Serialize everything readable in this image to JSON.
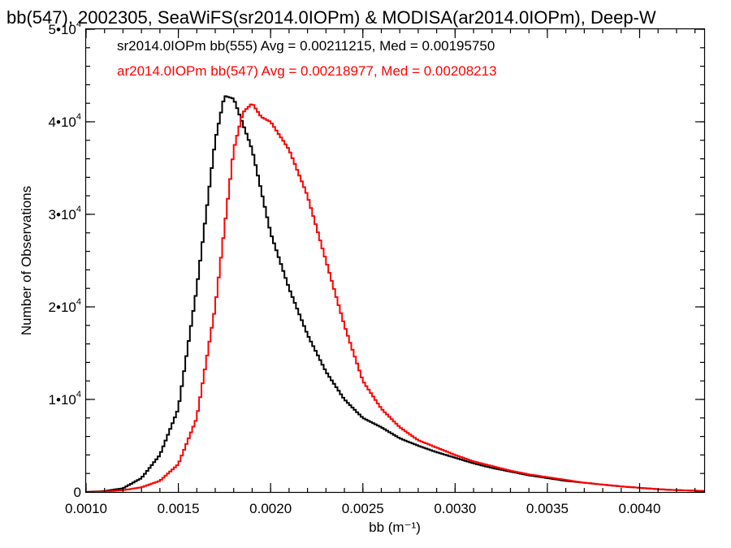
{
  "chart_data": {
    "type": "histogram",
    "title": "bb(547), 2002305, SeaWiFS(sr2014.0IOPm) & MODISA(ar2014.0IOPm), Deep-W",
    "xlabel": "bb (m⁻¹)",
    "ylabel": "Number of Observations",
    "xlim": [
      0.001,
      0.00435
    ],
    "ylim": [
      0,
      50000
    ],
    "x_ticks": [
      {
        "value": 0.001,
        "label": "0.0010"
      },
      {
        "value": 0.0015,
        "label": "0.0015"
      },
      {
        "value": 0.002,
        "label": "0.0020"
      },
      {
        "value": 0.0025,
        "label": "0.0025"
      },
      {
        "value": 0.003,
        "label": "0.0030"
      },
      {
        "value": 0.0035,
        "label": "0.0035"
      },
      {
        "value": 0.004,
        "label": "0.0040"
      }
    ],
    "y_ticks": [
      {
        "value": 0,
        "label": "0"
      },
      {
        "value": 10000,
        "label": "1•10",
        "exp": "4"
      },
      {
        "value": 20000,
        "label": "2•10",
        "exp": "4"
      },
      {
        "value": 30000,
        "label": "3•10",
        "exp": "4"
      },
      {
        "value": 40000,
        "label": "4•10",
        "exp": "4"
      },
      {
        "value": 50000,
        "label": "5•10",
        "exp": "4"
      }
    ],
    "bin_width": 1.25e-05,
    "series": [
      {
        "name": "sr2014.0IOPm bb(555)",
        "legend_text": "sr2014.0IOPm bb(555) Avg = 0.00211215, Med = 0.00195750",
        "color": "#000000",
        "x": [
          0.001,
          0.0011,
          0.0012,
          0.0013,
          0.0014,
          0.0015,
          0.0016,
          0.0017,
          0.00175,
          0.0018,
          0.0019,
          0.002,
          0.0021,
          0.0022,
          0.0023,
          0.0024,
          0.0025,
          0.0026,
          0.0027,
          0.0028,
          0.0029,
          0.003,
          0.0031,
          0.0032,
          0.0033,
          0.0034,
          0.0035,
          0.0036,
          0.0037,
          0.0038,
          0.0039,
          0.004,
          0.0041,
          0.0042,
          0.0043,
          0.00435
        ],
        "y": [
          0,
          100,
          400,
          1500,
          4000,
          9000,
          22000,
          38000,
          42800,
          42500,
          37000,
          28000,
          22000,
          17000,
          13000,
          10000,
          8000,
          7000,
          5800,
          5000,
          4300,
          3700,
          3100,
          2600,
          2200,
          1800,
          1500,
          1200,
          1000,
          800,
          600,
          450,
          300,
          200,
          150,
          100
        ]
      },
      {
        "name": "ar2014.0IOPm bb(547)",
        "legend_text": "ar2014.0IOPm bb(547) Avg = 0.00218977, Med = 0.00208213",
        "color": "#ff0000",
        "x": [
          0.001,
          0.0011,
          0.0012,
          0.0013,
          0.0014,
          0.0015,
          0.0016,
          0.0017,
          0.0018,
          0.00185,
          0.0019,
          0.00195,
          0.002,
          0.0021,
          0.0022,
          0.0023,
          0.0024,
          0.0025,
          0.0026,
          0.0027,
          0.0028,
          0.0029,
          0.003,
          0.0031,
          0.0032,
          0.0033,
          0.0034,
          0.0035,
          0.0036,
          0.0037,
          0.0038,
          0.0039,
          0.004,
          0.0041,
          0.0042,
          0.0043,
          0.00435
        ],
        "y": [
          0,
          50,
          200,
          500,
          1200,
          3000,
          8000,
          20000,
          37000,
          41000,
          42000,
          40500,
          40000,
          37000,
          32000,
          25000,
          18000,
          12000,
          9000,
          7000,
          5600,
          4800,
          4000,
          3300,
          2800,
          2300,
          1900,
          1600,
          1300,
          1000,
          800,
          600,
          450,
          300,
          200,
          150,
          100
        ]
      }
    ]
  }
}
